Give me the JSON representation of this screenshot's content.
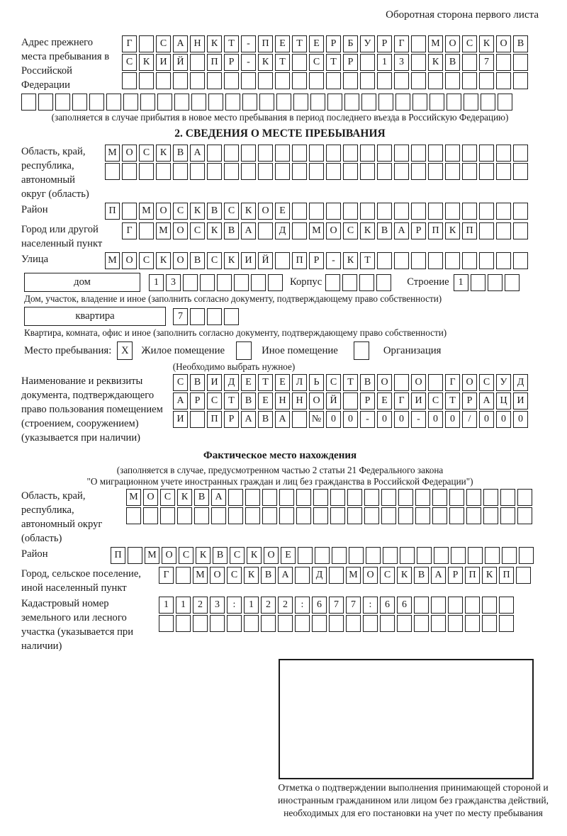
{
  "colors": {
    "ink": "#1c1c1c",
    "paper": "#ffffff"
  },
  "page": {
    "header_note": "Оборотная сторона первого листа"
  },
  "prev_address": {
    "label": "Адрес прежнего места пребывания в Российской Федерации",
    "rows": [
      [
        "Г",
        "",
        "С",
        "А",
        "Н",
        "К",
        "Т",
        "-",
        "П",
        "Е",
        "Т",
        "Е",
        "Р",
        "Б",
        "У",
        "Р",
        "Г",
        "",
        "М",
        "О",
        "С",
        "К",
        "О",
        "В"
      ],
      [
        "С",
        "К",
        "И",
        "Й",
        "",
        "П",
        "Р",
        "-",
        "К",
        "Т",
        "",
        "С",
        "Т",
        "Р",
        "",
        "1",
        "3",
        "",
        "К",
        "В",
        "",
        "7",
        "",
        ""
      ],
      24
    ],
    "full_row": 29,
    "note": "(заполняется в случае прибытия в новое место пребывания в период последнего въезда в Российскую Федерацию)"
  },
  "section2": {
    "title": "2. СВЕДЕНИЯ О МЕСТЕ ПРЕБЫВАНИЯ",
    "region": {
      "label": "Область, край, республика, автономный округ (область)",
      "rows": [
        [
          "М",
          "О",
          "С",
          "К",
          "В",
          "А",
          "",
          "",
          "",
          "",
          "",
          "",
          "",
          "",
          "",
          "",
          "",
          "",
          "",
          "",
          "",
          "",
          "",
          "",
          ""
        ],
        25
      ]
    },
    "district": {
      "label": "Район",
      "row": [
        "П",
        "",
        "М",
        "О",
        "С",
        "К",
        "В",
        "С",
        "К",
        "О",
        "Е",
        "",
        "",
        "",
        "",
        "",
        "",
        "",
        "",
        "",
        "",
        "",
        "",
        "",
        ""
      ]
    },
    "city": {
      "label": "Город или другой населенный пункт",
      "row": [
        "Г",
        "",
        "М",
        "О",
        "С",
        "К",
        "В",
        "А",
        "",
        "Д",
        "",
        "М",
        "О",
        "С",
        "К",
        "В",
        "А",
        "Р",
        "П",
        "К",
        "П",
        "",
        "",
        ""
      ]
    },
    "street": {
      "label": "Улица",
      "row": [
        "М",
        "О",
        "С",
        "К",
        "О",
        "В",
        "С",
        "К",
        "И",
        "Й",
        "",
        "П",
        "Р",
        "-",
        "К",
        "Т",
        "",
        "",
        "",
        "",
        "",
        "",
        "",
        "",
        ""
      ]
    },
    "house": {
      "type_value": "дом",
      "number": [
        "1",
        "3",
        "",
        "",
        "",
        "",
        "",
        ""
      ],
      "korpus_label": "Корпус",
      "korpus": [
        "",
        "",
        "",
        ""
      ],
      "stroenie_label": "Строение",
      "stroenie": [
        "1",
        "",
        "",
        ""
      ]
    },
    "house_note": "Дом, участок, владение и иное (заполнить согласно документу, подтверждающему право собственности)",
    "apartment": {
      "type_value": "квартира",
      "number": [
        "7",
        "",
        "",
        ""
      ]
    },
    "apartment_note": "Квартира, комната, офис и иное (заполнить согласно документу, подтверждающему право собственности)",
    "stay": {
      "label": "Место пребывания:",
      "options": [
        {
          "label": "Жилое помещение",
          "mark": "X"
        },
        {
          "label": "Иное помещение",
          "mark": ""
        },
        {
          "label": "Организация",
          "mark": ""
        }
      ],
      "note": "(Необходимо выбрать нужное)"
    },
    "doc": {
      "label": "Наименование и реквизиты документа, подтверждающего право пользования помещением (строением, сооружением) (указывается при наличии)",
      "rows": [
        [
          "С",
          "В",
          "И",
          "Д",
          "Е",
          "Т",
          "Е",
          "Л",
          "Ь",
          "С",
          "Т",
          "В",
          "О",
          "",
          "О",
          "",
          "Г",
          "О",
          "С",
          "У",
          "Д"
        ],
        [
          "А",
          "Р",
          "С",
          "Т",
          "В",
          "Е",
          "Н",
          "Н",
          "О",
          "Й",
          "",
          "Р",
          "Е",
          "Г",
          "И",
          "С",
          "Т",
          "Р",
          "А",
          "Ц",
          "И"
        ],
        [
          "И",
          "",
          "П",
          "Р",
          "А",
          "В",
          "А",
          "",
          "№",
          "0",
          "0",
          "-",
          "0",
          "0",
          "-",
          "0",
          "0",
          "/",
          "0",
          "0",
          "0"
        ]
      ]
    }
  },
  "actual_location": {
    "title": "Фактическое место нахождения",
    "note1": "(заполняется в случае, предусмотренном частью 2 статьи 21 Федерального закона",
    "note2": "\"О миграционном учете иностранных граждан и лиц без гражданства в Российской Федерации\")",
    "region": {
      "label": "Область, край, республика, автономный округ (область)",
      "rows": [
        [
          "М",
          "О",
          "С",
          "К",
          "В",
          "А",
          "",
          "",
          "",
          "",
          "",
          "",
          "",
          "",
          "",
          "",
          "",
          "",
          "",
          "",
          "",
          "",
          "",
          ""
        ],
        24
      ]
    },
    "district": {
      "label": "Район",
      "row": [
        "П",
        "",
        "М",
        "О",
        "С",
        "К",
        "В",
        "С",
        "К",
        "О",
        "Е",
        "",
        "",
        "",
        "",
        "",
        "",
        "",
        "",
        "",
        "",
        "",
        "",
        "",
        ""
      ]
    },
    "city": {
      "label": "Город, сельское поселение, иной населенный пункт",
      "row": [
        "Г",
        "",
        "М",
        "О",
        "С",
        "К",
        "В",
        "А",
        "",
        "Д",
        "",
        "М",
        "О",
        "С",
        "К",
        "В",
        "А",
        "Р",
        "П",
        "К",
        "П",
        ""
      ]
    },
    "cadastral": {
      "label": "Кадастровый номер земельного или лесного участка (указывается при наличии)",
      "rows": [
        [
          "1",
          "1",
          "2",
          "3",
          ":",
          "1",
          "2",
          "2",
          ":",
          "6",
          "7",
          "7",
          ":",
          "6",
          "6",
          "",
          "",
          "",
          "",
          "",
          ""
        ],
        21
      ]
    },
    "stamp_note": "Отметка о подтверждении выполнения принимающей стороной и иностранным гражданином или лицом без гражданства действий, необходимых для его постановки на учет по месту пребывания"
  }
}
